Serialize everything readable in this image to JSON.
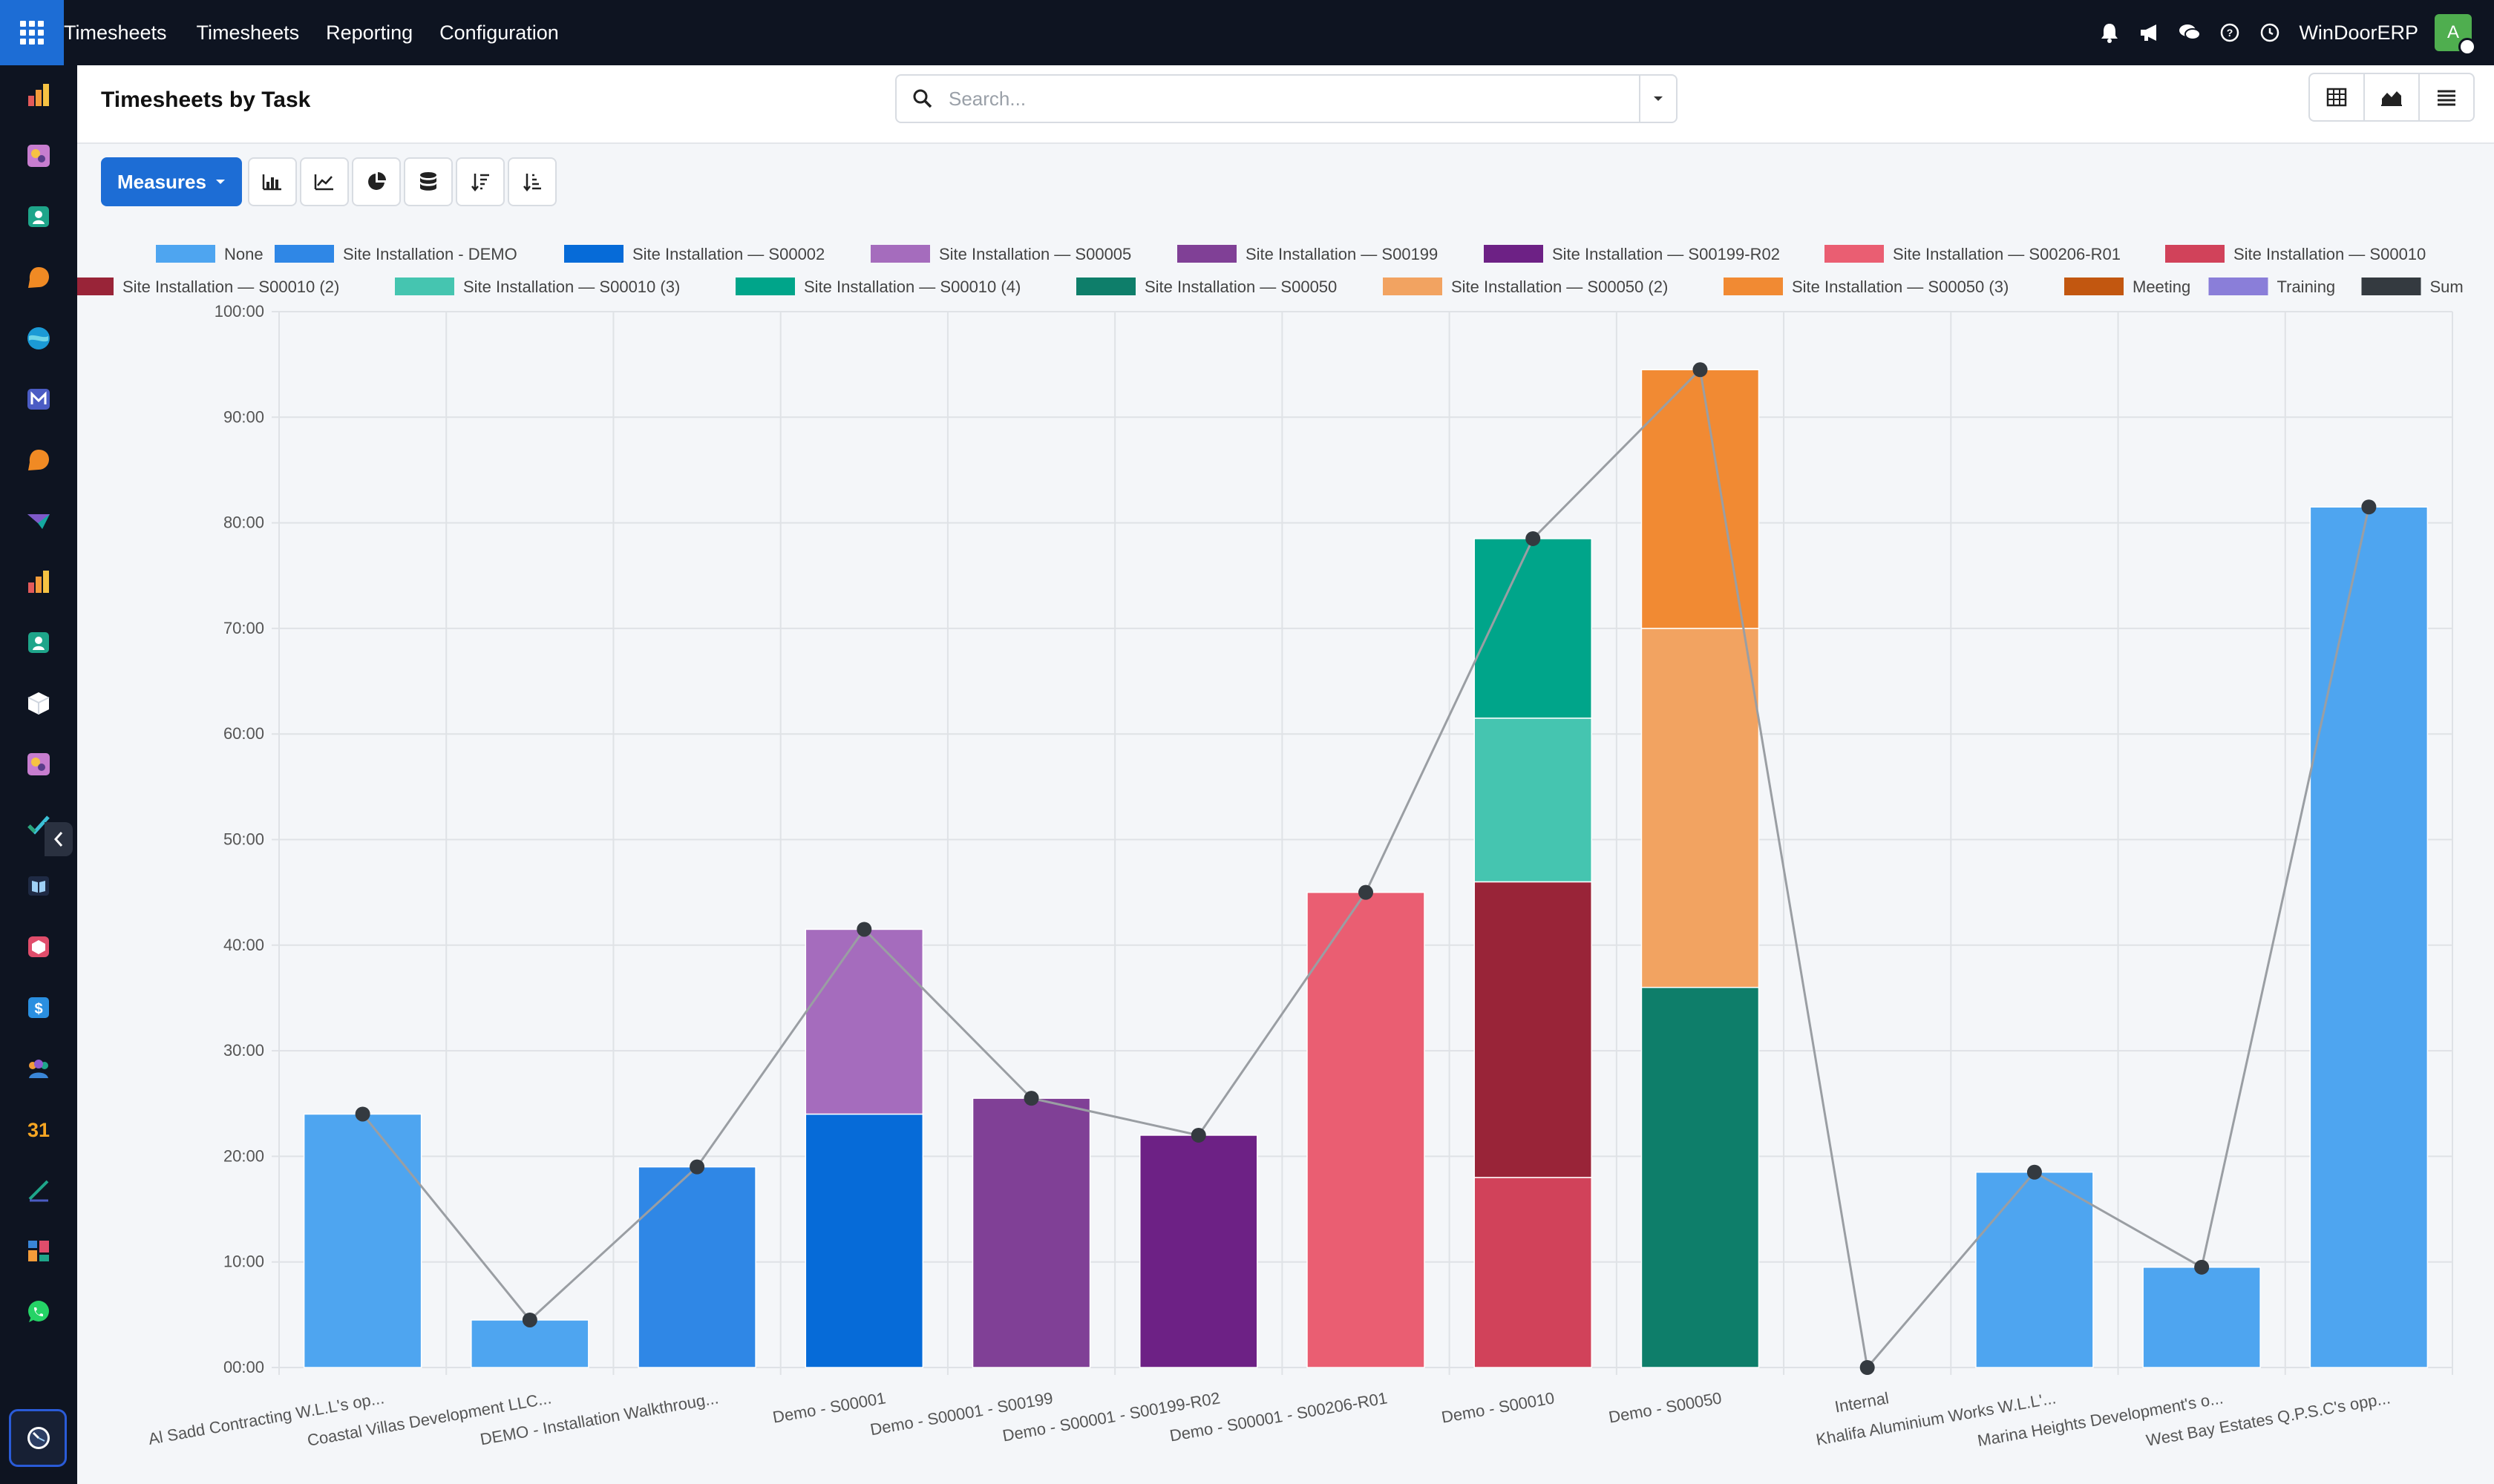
{
  "app": {
    "title": "Timesheets",
    "menus": [
      "Timesheets",
      "Reporting",
      "Configuration"
    ],
    "company": "WinDoorERP",
    "avatar_initial": "A"
  },
  "sidebar": {
    "apps": [
      "sales-icon",
      "projects-icon",
      "contacts-icon",
      "discuss-icon",
      "ocean-icon",
      "email-marketing-icon",
      "livechat-icon",
      "surveys-icon",
      "analytics-icon",
      "employees-icon",
      "inventory-icon",
      "documents-icon",
      "tasks-icon",
      "knowledge-icon",
      "products-icon",
      "accounting-icon",
      "team-icon",
      "calendar-icon",
      "sign-icon",
      "dashboards-icon",
      "whatsapp-icon",
      "timesheets-icon",
      "ocean-icon"
    ],
    "calendar_day": "31"
  },
  "control": {
    "page_title": "Timesheets by Task",
    "search_placeholder": "Search..."
  },
  "toolbar": {
    "measures_label": "Measures"
  },
  "chart_data": {
    "type": "bar",
    "stacked": true,
    "ylim": [
      0,
      100
    ],
    "yticks": [
      "00:00",
      "10:00",
      "20:00",
      "30:00",
      "40:00",
      "50:00",
      "60:00",
      "70:00",
      "80:00",
      "90:00",
      "100:00"
    ],
    "categories": [
      "Al Sadd Contracting W.L.L's op...",
      "Coastal Villas Development LLC...",
      "DEMO - Installation Walkthroug...",
      "Demo - S00001",
      "Demo - S00001 - S00199",
      "Demo - S00001 - S00199-R02",
      "Demo - S00001 - S00206-R01",
      "Demo - S00010",
      "Demo - S00050",
      "Internal",
      "Khalifa Aluminium Works W.L.L'...",
      "Marina Heights Development's o...",
      "West Bay Estates Q.P.S.C's opp..."
    ],
    "series": [
      {
        "name": "None",
        "color": "#4ea5f0",
        "values": [
          24,
          4.5,
          0,
          0,
          0,
          0,
          0,
          0,
          0,
          0,
          18.5,
          9.5,
          81.5
        ]
      },
      {
        "name": "Site Installation - DEMO",
        "color": "#2f87e6",
        "values": [
          0,
          0,
          19,
          0,
          0,
          0,
          0,
          0,
          0,
          0,
          0,
          0,
          0
        ]
      },
      {
        "name": "Site Installation — S00002",
        "color": "#066bd8",
        "values": [
          0,
          0,
          0,
          24,
          0,
          0,
          0,
          0,
          0,
          0,
          0,
          0,
          0
        ]
      },
      {
        "name": "Site Installation — S00005",
        "color": "#a56cbd",
        "values": [
          0,
          0,
          0,
          17.5,
          0,
          0,
          0,
          0,
          0,
          0,
          0,
          0,
          0
        ]
      },
      {
        "name": "Site Installation — S00199",
        "color": "#804096",
        "values": [
          0,
          0,
          0,
          0,
          25.5,
          0,
          0,
          0,
          0,
          0,
          0,
          0,
          0
        ]
      },
      {
        "name": "Site Installation — S00199-R02",
        "color": "#6d2185",
        "values": [
          0,
          0,
          0,
          0,
          0,
          22,
          0,
          0,
          0,
          0,
          0,
          0,
          0
        ]
      },
      {
        "name": "Site Installation — S00206-R01",
        "color": "#ea5e72",
        "values": [
          0,
          0,
          0,
          0,
          0,
          0,
          45,
          0,
          0,
          0,
          0,
          0,
          0
        ]
      },
      {
        "name": "Site Installation — S00010",
        "color": "#d1425a",
        "values": [
          0,
          0,
          0,
          0,
          0,
          0,
          0,
          18,
          0,
          0,
          0,
          0,
          0
        ]
      },
      {
        "name": "Site Installation — S00010 (2)",
        "color": "#992438",
        "values": [
          0,
          0,
          0,
          0,
          0,
          0,
          0,
          28,
          0,
          0,
          0,
          0,
          0
        ]
      },
      {
        "name": "Site Installation — S00010 (3)",
        "color": "#45c5b0",
        "values": [
          0,
          0,
          0,
          0,
          0,
          0,
          0,
          15.5,
          0,
          0,
          0,
          0,
          0
        ]
      },
      {
        "name": "Site Installation — S00010 (4)",
        "color": "#00a58a",
        "values": [
          0,
          0,
          0,
          0,
          0,
          0,
          0,
          17,
          0,
          0,
          0,
          0,
          0
        ]
      },
      {
        "name": "Site Installation — S00050",
        "color": "#0e7e6a",
        "values": [
          0,
          0,
          0,
          0,
          0,
          0,
          0,
          0,
          36,
          0,
          0,
          0,
          0
        ]
      },
      {
        "name": "Site Installation — S00050 (2)",
        "color": "#f2a361",
        "values": [
          0,
          0,
          0,
          0,
          0,
          0,
          0,
          0,
          34,
          0,
          0,
          0,
          0
        ]
      },
      {
        "name": "Site Installation — S00050 (3)",
        "color": "#f18a33",
        "values": [
          0,
          0,
          0,
          0,
          0,
          0,
          0,
          0,
          24.5,
          0,
          0,
          0,
          0
        ]
      },
      {
        "name": "Meeting",
        "color": "#c25710",
        "values": [
          0,
          0,
          0,
          0,
          0,
          0,
          0,
          0,
          0,
          0,
          0,
          0,
          0
        ]
      },
      {
        "name": "Training",
        "color": "#8a7ed9",
        "values": [
          0,
          0,
          0,
          0,
          0,
          0,
          0,
          0,
          0,
          0,
          0,
          0,
          0
        ]
      }
    ],
    "sum_series": {
      "name": "Sum",
      "color": "#343a40",
      "values": [
        24,
        4.5,
        19,
        41.5,
        25.5,
        22,
        45,
        78.5,
        94.5,
        0,
        18.5,
        9.5,
        81.5
      ]
    },
    "legend_position": "top",
    "grid": true
  }
}
